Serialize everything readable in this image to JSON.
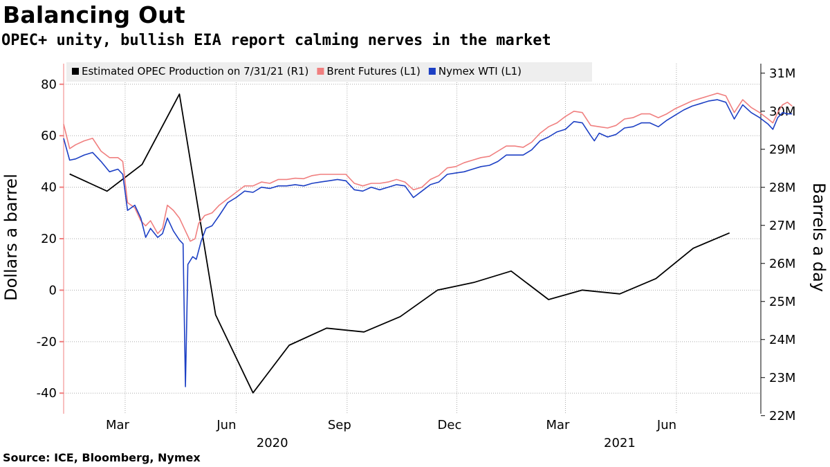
{
  "header": {
    "title": "Balancing Out",
    "subtitle": "OPEC+ unity, bullish EIA report calming nerves in the market"
  },
  "footer": {
    "source": "Source: ICE, Bloomberg, Nymex"
  },
  "colors": {
    "opec": "#000000",
    "brent": "#f07f7f",
    "wti": "#1c3fc4",
    "grid": "#aaaaaa",
    "legend_bg": "#eeeeee"
  },
  "chart_data": {
    "type": "line",
    "left_axis": {
      "title": "Dollars a barrel",
      "ylim": [
        -48,
        88
      ],
      "ticks": [
        -40,
        -20,
        0,
        20,
        40,
        60,
        80
      ],
      "tick_labels": [
        "-40",
        "-20",
        "0",
        "20",
        "40",
        "60",
        "80"
      ]
    },
    "right_axis": {
      "title": "Barrels a day",
      "ylim": [
        22.05,
        31.25
      ],
      "ticks": [
        22,
        23,
        24,
        25,
        26,
        27,
        28,
        29,
        30,
        31
      ],
      "tick_labels": [
        "22M",
        "23M",
        "24M",
        "25M",
        "26M",
        "27M",
        "28M",
        "29M",
        "30M",
        "31M"
      ]
    },
    "x_axis": {
      "range": [
        "2020-01-10",
        "2021-08-10"
      ],
      "ticks": [
        {
          "date": "2020-03-01",
          "label": "Mar"
        },
        {
          "date": "2020-06-01",
          "label": "Jun"
        },
        {
          "date": "2020-09-01",
          "label": "Sep"
        },
        {
          "date": "2020-12-01",
          "label": "Dec"
        },
        {
          "date": "2021-03-01",
          "label": "Mar"
        },
        {
          "date": "2021-06-01",
          "label": "Jun"
        }
      ],
      "year_labels": [
        {
          "date": "2020-07-01",
          "label": "2020"
        },
        {
          "date": "2021-04-15",
          "label": "2021"
        }
      ]
    },
    "grid": true,
    "legend_position": "top",
    "series": [
      {
        "name": "Estimated OPEC Production on 7/31/21 (R1)",
        "axis": "right",
        "color_key": "opec",
        "points": [
          [
            "2020-01-15",
            28.35
          ],
          [
            "2020-02-15",
            27.9
          ],
          [
            "2020-03-15",
            28.6
          ],
          [
            "2020-04-15",
            30.45
          ],
          [
            "2020-05-15",
            24.65
          ],
          [
            "2020-06-15",
            22.6
          ],
          [
            "2020-07-15",
            23.85
          ],
          [
            "2020-08-15",
            24.3
          ],
          [
            "2020-09-15",
            24.2
          ],
          [
            "2020-10-15",
            24.6
          ],
          [
            "2020-11-15",
            25.3
          ],
          [
            "2020-12-15",
            25.5
          ],
          [
            "2021-01-15",
            25.8
          ],
          [
            "2021-02-15",
            25.05
          ],
          [
            "2021-03-15",
            25.3
          ],
          [
            "2021-04-15",
            25.2
          ],
          [
            "2021-05-15",
            25.6
          ],
          [
            "2021-06-15",
            26.4
          ],
          [
            "2021-07-15",
            26.8
          ]
        ]
      },
      {
        "name": "Brent Futures (L1)",
        "axis": "left",
        "color_key": "brent",
        "points": [
          [
            "2020-01-10",
            64.5
          ],
          [
            "2020-01-15",
            55
          ],
          [
            "2020-01-20",
            56.5
          ],
          [
            "2020-01-27",
            58
          ],
          [
            "2020-02-03",
            59
          ],
          [
            "2020-02-10",
            54
          ],
          [
            "2020-02-17",
            51.5
          ],
          [
            "2020-02-24",
            51.5
          ],
          [
            "2020-02-28",
            50
          ],
          [
            "2020-03-03",
            34
          ],
          [
            "2020-03-09",
            32
          ],
          [
            "2020-03-14",
            27
          ],
          [
            "2020-03-18",
            25
          ],
          [
            "2020-03-22",
            27
          ],
          [
            "2020-03-28",
            22
          ],
          [
            "2020-04-01",
            24
          ],
          [
            "2020-04-05",
            33
          ],
          [
            "2020-04-10",
            31
          ],
          [
            "2020-04-15",
            28
          ],
          [
            "2020-04-20",
            23
          ],
          [
            "2020-04-24",
            19
          ],
          [
            "2020-04-28",
            20
          ],
          [
            "2020-05-01",
            26
          ],
          [
            "2020-05-06",
            29
          ],
          [
            "2020-05-12",
            30
          ],
          [
            "2020-05-18",
            33
          ],
          [
            "2020-05-25",
            35.5
          ],
          [
            "2020-06-01",
            38
          ],
          [
            "2020-06-08",
            40.5
          ],
          [
            "2020-06-15",
            40.5
          ],
          [
            "2020-06-22",
            42
          ],
          [
            "2020-06-29",
            41.5
          ],
          [
            "2020-07-06",
            43
          ],
          [
            "2020-07-13",
            43
          ],
          [
            "2020-07-20",
            43.5
          ],
          [
            "2020-07-27",
            43.3
          ],
          [
            "2020-08-03",
            44.5
          ],
          [
            "2020-08-10",
            45
          ],
          [
            "2020-08-17",
            45
          ],
          [
            "2020-08-24",
            45
          ],
          [
            "2020-08-31",
            45
          ],
          [
            "2020-09-07",
            41.5
          ],
          [
            "2020-09-14",
            40.5
          ],
          [
            "2020-09-21",
            41.5
          ],
          [
            "2020-09-28",
            41.5
          ],
          [
            "2020-10-05",
            42
          ],
          [
            "2020-10-12",
            43
          ],
          [
            "2020-10-19",
            42
          ],
          [
            "2020-10-26",
            39
          ],
          [
            "2020-11-02",
            40
          ],
          [
            "2020-11-09",
            43
          ],
          [
            "2020-11-16",
            44.5
          ],
          [
            "2020-11-23",
            47.5
          ],
          [
            "2020-11-30",
            48
          ],
          [
            "2020-12-07",
            49.5
          ],
          [
            "2020-12-14",
            50.5
          ],
          [
            "2020-12-21",
            51.5
          ],
          [
            "2020-12-28",
            52
          ],
          [
            "2021-01-04",
            54
          ],
          [
            "2021-01-11",
            56
          ],
          [
            "2021-01-18",
            56
          ],
          [
            "2021-01-25",
            55.5
          ],
          [
            "2021-02-01",
            57.5
          ],
          [
            "2021-02-08",
            61
          ],
          [
            "2021-02-15",
            63.5
          ],
          [
            "2021-02-22",
            65
          ],
          [
            "2021-03-01",
            67.5
          ],
          [
            "2021-03-08",
            69.5
          ],
          [
            "2021-03-15",
            69
          ],
          [
            "2021-03-22",
            64
          ],
          [
            "2021-03-29",
            63.5
          ],
          [
            "2021-04-05",
            63
          ],
          [
            "2021-04-12",
            64
          ],
          [
            "2021-04-19",
            66.5
          ],
          [
            "2021-04-26",
            67
          ],
          [
            "2021-05-03",
            68.5
          ],
          [
            "2021-05-10",
            68.5
          ],
          [
            "2021-05-17",
            67
          ],
          [
            "2021-05-24",
            68.5
          ],
          [
            "2021-05-31",
            70.5
          ],
          [
            "2021-06-07",
            72
          ],
          [
            "2021-06-14",
            73.5
          ],
          [
            "2021-06-21",
            74.5
          ],
          [
            "2021-06-28",
            75.5
          ],
          [
            "2021-07-05",
            76.5
          ],
          [
            "2021-07-12",
            75.5
          ],
          [
            "2021-07-19",
            69
          ],
          [
            "2021-07-26",
            74
          ],
          [
            "2021-08-02",
            71
          ],
          [
            "2021-08-09",
            69
          ],
          [
            "2021-08-16",
            66.5
          ],
          [
            "2021-08-20",
            65
          ],
          [
            "2021-08-24",
            69
          ],
          [
            "2021-08-28",
            72
          ],
          [
            "2021-09-01",
            73
          ],
          [
            "2021-09-05",
            71.5
          ]
        ]
      },
      {
        "name": "Nymex WTI  (L1)",
        "axis": "left",
        "color_key": "wti",
        "points": [
          [
            "2020-01-10",
            59
          ],
          [
            "2020-01-15",
            50.5
          ],
          [
            "2020-01-20",
            51
          ],
          [
            "2020-01-27",
            52.5
          ],
          [
            "2020-02-03",
            53.5
          ],
          [
            "2020-02-10",
            50
          ],
          [
            "2020-02-17",
            46
          ],
          [
            "2020-02-24",
            47
          ],
          [
            "2020-02-28",
            45
          ],
          [
            "2020-03-03",
            31
          ],
          [
            "2020-03-09",
            33
          ],
          [
            "2020-03-14",
            28
          ],
          [
            "2020-03-18",
            20.5
          ],
          [
            "2020-03-22",
            24
          ],
          [
            "2020-03-28",
            20.5
          ],
          [
            "2020-04-01",
            22
          ],
          [
            "2020-04-05",
            28
          ],
          [
            "2020-04-10",
            23
          ],
          [
            "2020-04-15",
            19.5
          ],
          [
            "2020-04-18",
            18
          ],
          [
            "2020-04-20",
            -37.5
          ],
          [
            "2020-04-22",
            10
          ],
          [
            "2020-04-26",
            13
          ],
          [
            "2020-04-29",
            12
          ],
          [
            "2020-05-03",
            19
          ],
          [
            "2020-05-07",
            24
          ],
          [
            "2020-05-12",
            25
          ],
          [
            "2020-05-18",
            29
          ],
          [
            "2020-05-25",
            34
          ],
          [
            "2020-06-01",
            36
          ],
          [
            "2020-06-08",
            38.5
          ],
          [
            "2020-06-15",
            38
          ],
          [
            "2020-06-22",
            40
          ],
          [
            "2020-06-29",
            39.5
          ],
          [
            "2020-07-06",
            40.5
          ],
          [
            "2020-07-13",
            40.5
          ],
          [
            "2020-07-20",
            41
          ],
          [
            "2020-07-27",
            40.5
          ],
          [
            "2020-08-03",
            41.5
          ],
          [
            "2020-08-10",
            42
          ],
          [
            "2020-08-17",
            42.5
          ],
          [
            "2020-08-24",
            43
          ],
          [
            "2020-08-31",
            42.5
          ],
          [
            "2020-09-07",
            39
          ],
          [
            "2020-09-14",
            38.5
          ],
          [
            "2020-09-21",
            40
          ],
          [
            "2020-09-28",
            39
          ],
          [
            "2020-10-05",
            40
          ],
          [
            "2020-10-12",
            41
          ],
          [
            "2020-10-19",
            40.5
          ],
          [
            "2020-10-26",
            36
          ],
          [
            "2020-11-02",
            38.5
          ],
          [
            "2020-11-09",
            41
          ],
          [
            "2020-11-16",
            42
          ],
          [
            "2020-11-23",
            45
          ],
          [
            "2020-11-30",
            45.5
          ],
          [
            "2020-12-07",
            46
          ],
          [
            "2020-12-14",
            47
          ],
          [
            "2020-12-21",
            48
          ],
          [
            "2020-12-28",
            48.5
          ],
          [
            "2021-01-04",
            50
          ],
          [
            "2021-01-11",
            52.5
          ],
          [
            "2021-01-18",
            52.5
          ],
          [
            "2021-01-25",
            52.5
          ],
          [
            "2021-02-01",
            54.5
          ],
          [
            "2021-02-08",
            58
          ],
          [
            "2021-02-15",
            59.5
          ],
          [
            "2021-02-22",
            61.5
          ],
          [
            "2021-03-01",
            62.5
          ],
          [
            "2021-03-08",
            65.5
          ],
          [
            "2021-03-15",
            65
          ],
          [
            "2021-03-22",
            60
          ],
          [
            "2021-03-25",
            58
          ],
          [
            "2021-03-29",
            61
          ],
          [
            "2021-04-05",
            59.5
          ],
          [
            "2021-04-12",
            60.5
          ],
          [
            "2021-04-19",
            63
          ],
          [
            "2021-04-26",
            63.5
          ],
          [
            "2021-05-03",
            65
          ],
          [
            "2021-05-10",
            65
          ],
          [
            "2021-05-17",
            63.5
          ],
          [
            "2021-05-24",
            66
          ],
          [
            "2021-05-31",
            68
          ],
          [
            "2021-06-07",
            70
          ],
          [
            "2021-06-14",
            71.5
          ],
          [
            "2021-06-21",
            72.5
          ],
          [
            "2021-06-28",
            73.5
          ],
          [
            "2021-07-05",
            74
          ],
          [
            "2021-07-12",
            73
          ],
          [
            "2021-07-19",
            66.5
          ],
          [
            "2021-07-26",
            72
          ],
          [
            "2021-08-02",
            69
          ],
          [
            "2021-08-09",
            67
          ],
          [
            "2021-08-16",
            64.5
          ],
          [
            "2021-08-20",
            62.5
          ],
          [
            "2021-08-24",
            67
          ],
          [
            "2021-08-28",
            69
          ],
          [
            "2021-09-01",
            68.5
          ],
          [
            "2021-09-05",
            68.5
          ]
        ]
      }
    ]
  }
}
